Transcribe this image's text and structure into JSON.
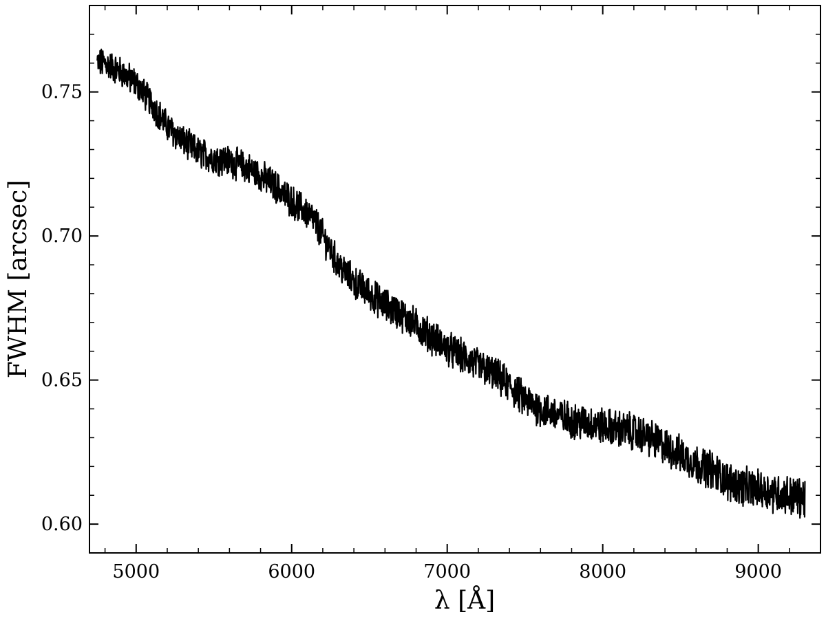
{
  "chart_data": {
    "type": "line",
    "title": "",
    "xlabel": "λ [Å]",
    "ylabel": "FWHM [arcsec]",
    "xlim": [
      4700,
      9400
    ],
    "ylim": [
      0.59,
      0.78
    ],
    "x_ticks": [
      5000,
      6000,
      7000,
      8000,
      9000
    ],
    "x_tick_labels": [
      "5000",
      "6000",
      "7000",
      "8000",
      "9000"
    ],
    "x_minor_step": 200,
    "y_ticks": [
      0.6,
      0.65,
      0.7,
      0.75
    ],
    "y_tick_labels": [
      "0.60",
      "0.65",
      "0.70",
      "0.75"
    ],
    "y_minor_step": 0.01,
    "grid": false,
    "legend": "none",
    "line_color": "#000000",
    "series": [
      {
        "x": [
          4750,
          4800,
          4900,
          5000,
          5100,
          5200,
          5300,
          5400,
          5500,
          5600,
          5700,
          5800,
          5900,
          6000,
          6100,
          6150,
          6200,
          6250,
          6300,
          6400,
          6500,
          6600,
          6700,
          6800,
          6900,
          7000,
          7100,
          7200,
          7300,
          7350,
          7400,
          7500,
          7600,
          7700,
          7800,
          7900,
          8000,
          8100,
          8200,
          8300,
          8400,
          8500,
          8600,
          8700,
          8800,
          8900,
          9000,
          9100,
          9200,
          9300
        ],
        "y": [
          0.76,
          0.76,
          0.757,
          0.753,
          0.746,
          0.738,
          0.733,
          0.729,
          0.727,
          0.726,
          0.724,
          0.721,
          0.717,
          0.712,
          0.708,
          0.705,
          0.7,
          0.695,
          0.69,
          0.684,
          0.68,
          0.676,
          0.673,
          0.669,
          0.665,
          0.661,
          0.658,
          0.655,
          0.652,
          0.65,
          0.648,
          0.643,
          0.64,
          0.638,
          0.636,
          0.635,
          0.634,
          0.633,
          0.632,
          0.63,
          0.627,
          0.624,
          0.621,
          0.619,
          0.615,
          0.613,
          0.612,
          0.611,
          0.61,
          0.609
        ]
      }
    ]
  }
}
